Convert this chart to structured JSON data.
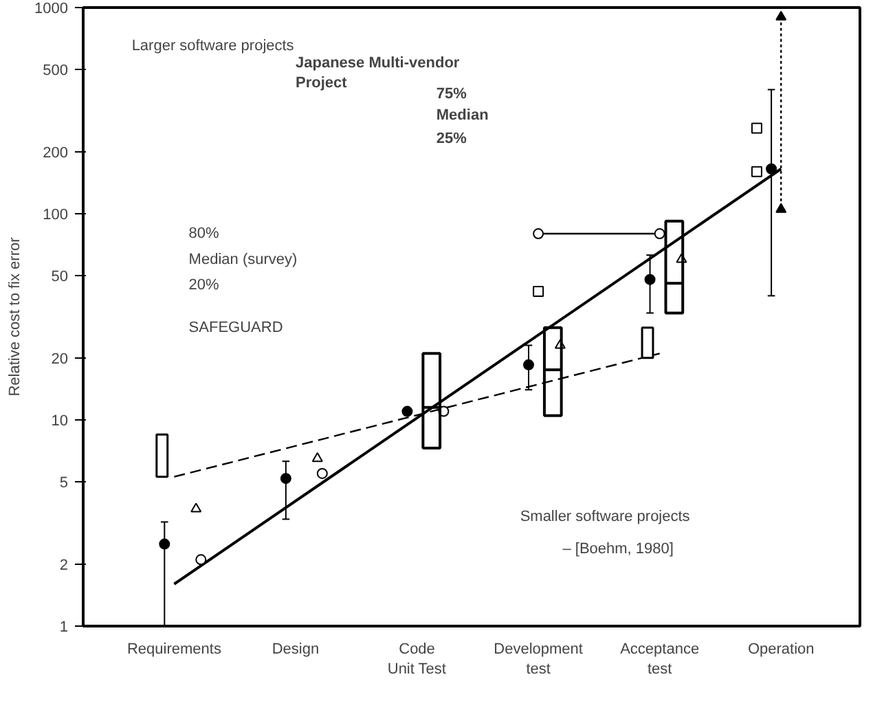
{
  "chart_data": {
    "type": "scatter",
    "ylabel": "Relative cost to fix error",
    "categories": [
      "Requirements",
      "Design",
      "Code\nUnit Test",
      "Development\ntest",
      "Acceptance\ntest",
      "Operation"
    ],
    "ylim": [
      1,
      1000
    ],
    "yticks": [
      1,
      2,
      5,
      10,
      20,
      50,
      100,
      200,
      500,
      1000
    ],
    "log": true,
    "grid": false,
    "annotations": [
      "Larger software projects",
      "80%",
      "Median (survey)",
      "20%",
      "SAFEGUARD",
      "Japanese Multi-vendor\nProject",
      "75%",
      "Median",
      "25%",
      "Smaller software projects",
      "– [Boehm, 1980]"
    ],
    "series": [
      {
        "type": "line",
        "color": "#000000",
        "line_style": "solid",
        "marker": "none",
        "x": [
          "Requirements",
          "Operation"
        ],
        "values": [
          1.6,
          165
        ]
      },
      {
        "type": "line",
        "color": "#000000",
        "line_style": "dashed",
        "marker": "none",
        "x": [
          "Requirements",
          "Acceptance\ntest"
        ],
        "values": [
          5.3,
          21
        ]
      },
      {
        "color": "#000000",
        "marker": "circle",
        "x": [
          "Requirements",
          "Design",
          "Code\nUnit Test",
          "Development\ntest",
          "Acceptance\ntest",
          "Operation"
        ],
        "values": [
          2.5,
          5.2,
          11,
          18.5,
          48,
          165
        ],
        "errors": [
          [
            1,
            3.2
          ],
          [
            3.3,
            6.3
          ],
          null,
          [
            14,
            23
          ],
          [
            33,
            63
          ],
          [
            40,
            400
          ]
        ]
      },
      {
        "color": "#000000",
        "marker": "triangle",
        "x": [
          "Requirements",
          "Design",
          "Development\ntest",
          "Acceptance\ntest"
        ],
        "values": [
          3.7,
          6.5,
          23,
          60
        ]
      },
      {
        "type": "line",
        "color": "#000000",
        "line_style": "dotted",
        "marker": "triangle",
        "x": [
          "Operation",
          "Operation"
        ],
        "values": [
          900,
          105
        ]
      },
      {
        "color": "#000000",
        "marker": "square",
        "x": [
          "Development\ntest"
        ],
        "values": [
          42
        ]
      },
      {
        "color": "#000000",
        "marker": "square",
        "x": [
          "Operation",
          "Operation"
        ],
        "values": [
          160,
          260
        ]
      },
      {
        "color": "#000000",
        "marker": "circle",
        "x": [
          "Requirements",
          "Design",
          "Code\nUnit Test"
        ],
        "values": [
          2.1,
          5.5,
          11
        ]
      },
      {
        "type": "line",
        "color": "#000000",
        "line_style": "solid",
        "marker": "circle",
        "x": [
          "Development\ntest",
          "Acceptance\ntest"
        ],
        "values": [
          80,
          80
        ]
      },
      {
        "type": "box",
        "color": "#000000",
        "x": [
          "Code\nUnit Test",
          "Development\ntest",
          "Acceptance\ntest"
        ],
        "boxes": [
          {
            "low": 7.3,
            "q1": 7.3,
            "median": 11.5,
            "q3": 21,
            "high": 21
          },
          {
            "low": 10.5,
            "q1": 10.5,
            "median": 17.5,
            "q3": 28,
            "high": 28
          },
          {
            "low": 33,
            "q1": 33,
            "median": 46,
            "q3": 92,
            "high": 92
          }
        ]
      },
      {
        "type": "bar",
        "color": "#000000",
        "x": [
          "Requirements",
          "Acceptance\ntest"
        ],
        "base": [
          5.3,
          20
        ],
        "values": [
          3.2,
          8
        ]
      }
    ]
  }
}
